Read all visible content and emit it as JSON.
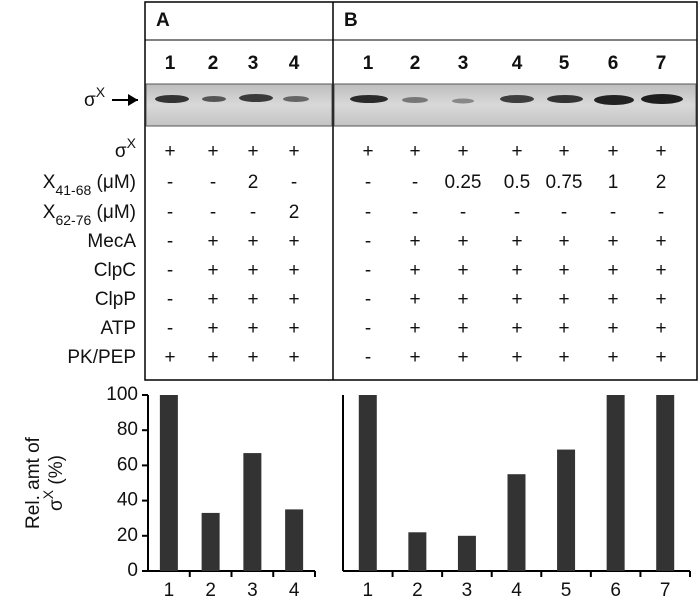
{
  "panels": [
    "A",
    "B"
  ],
  "lanes": {
    "a": [
      "1",
      "2",
      "3",
      "4"
    ],
    "b": [
      "1",
      "2",
      "3",
      "4",
      "5",
      "6",
      "7"
    ]
  },
  "gel_label": {
    "text": "σ",
    "sup": "X"
  },
  "table": {
    "rows": [
      {
        "label": {
          "text": "σ",
          "sup": "X"
        },
        "a": [
          "+",
          "+",
          "+",
          "+"
        ],
        "b": [
          "+",
          "+",
          "+",
          "+",
          "+",
          "+",
          "+"
        ]
      },
      {
        "label": {
          "text": "X",
          "sub": "41-68",
          "suffix": " (μM)"
        },
        "a": [
          "-",
          "-",
          "2",
          "-"
        ],
        "b": [
          "-",
          "-",
          "0.25",
          "0.5",
          "0.75",
          "1",
          "2"
        ]
      },
      {
        "label": {
          "text": "X",
          "sub": "62-76",
          "suffix": " (μM)"
        },
        "a": [
          "-",
          "-",
          "-",
          "2"
        ],
        "b": [
          "-",
          "-",
          "-",
          "-",
          "-",
          "-",
          "-"
        ]
      },
      {
        "label": {
          "text": "MecA"
        },
        "a": [
          "-",
          "+",
          "+",
          "+"
        ],
        "b": [
          "-",
          "+",
          "+",
          "+",
          "+",
          "+",
          "+"
        ]
      },
      {
        "label": {
          "text": "ClpC"
        },
        "a": [
          "-",
          "+",
          "+",
          "+"
        ],
        "b": [
          "-",
          "+",
          "+",
          "+",
          "+",
          "+",
          "+"
        ]
      },
      {
        "label": {
          "text": "ClpP"
        },
        "a": [
          "-",
          "+",
          "+",
          "+"
        ],
        "b": [
          "-",
          "+",
          "+",
          "+",
          "+",
          "+",
          "+"
        ]
      },
      {
        "label": {
          "text": "ATP"
        },
        "a": [
          "-",
          "+",
          "+",
          "+"
        ],
        "b": [
          "-",
          "+",
          "+",
          "+",
          "+",
          "+",
          "+"
        ]
      },
      {
        "label": {
          "text": "PK/PEP"
        },
        "a": [
          "+",
          "+",
          "+",
          "+"
        ],
        "b": [
          "-",
          "+",
          "+",
          "+",
          "+",
          "+",
          "+"
        ]
      }
    ]
  },
  "chart_data": [
    {
      "type": "bar",
      "ylabel": {
        "line1": "Rel. amt of",
        "text": "σ",
        "sup": "X",
        "suffix": " (%)"
      },
      "categories": [
        "1",
        "2",
        "3",
        "4"
      ],
      "values": [
        100,
        33,
        67,
        35
      ],
      "color": "#333333",
      "ylim": [
        0,
        100
      ],
      "yticks": [
        0,
        20,
        40,
        60,
        80,
        100
      ]
    },
    {
      "type": "bar",
      "categories": [
        "1",
        "2",
        "3",
        "4",
        "5",
        "6",
        "7"
      ],
      "values": [
        100,
        22,
        20,
        55,
        69,
        100,
        100
      ],
      "color": "#333333",
      "ylim": [
        0,
        100
      ]
    }
  ]
}
